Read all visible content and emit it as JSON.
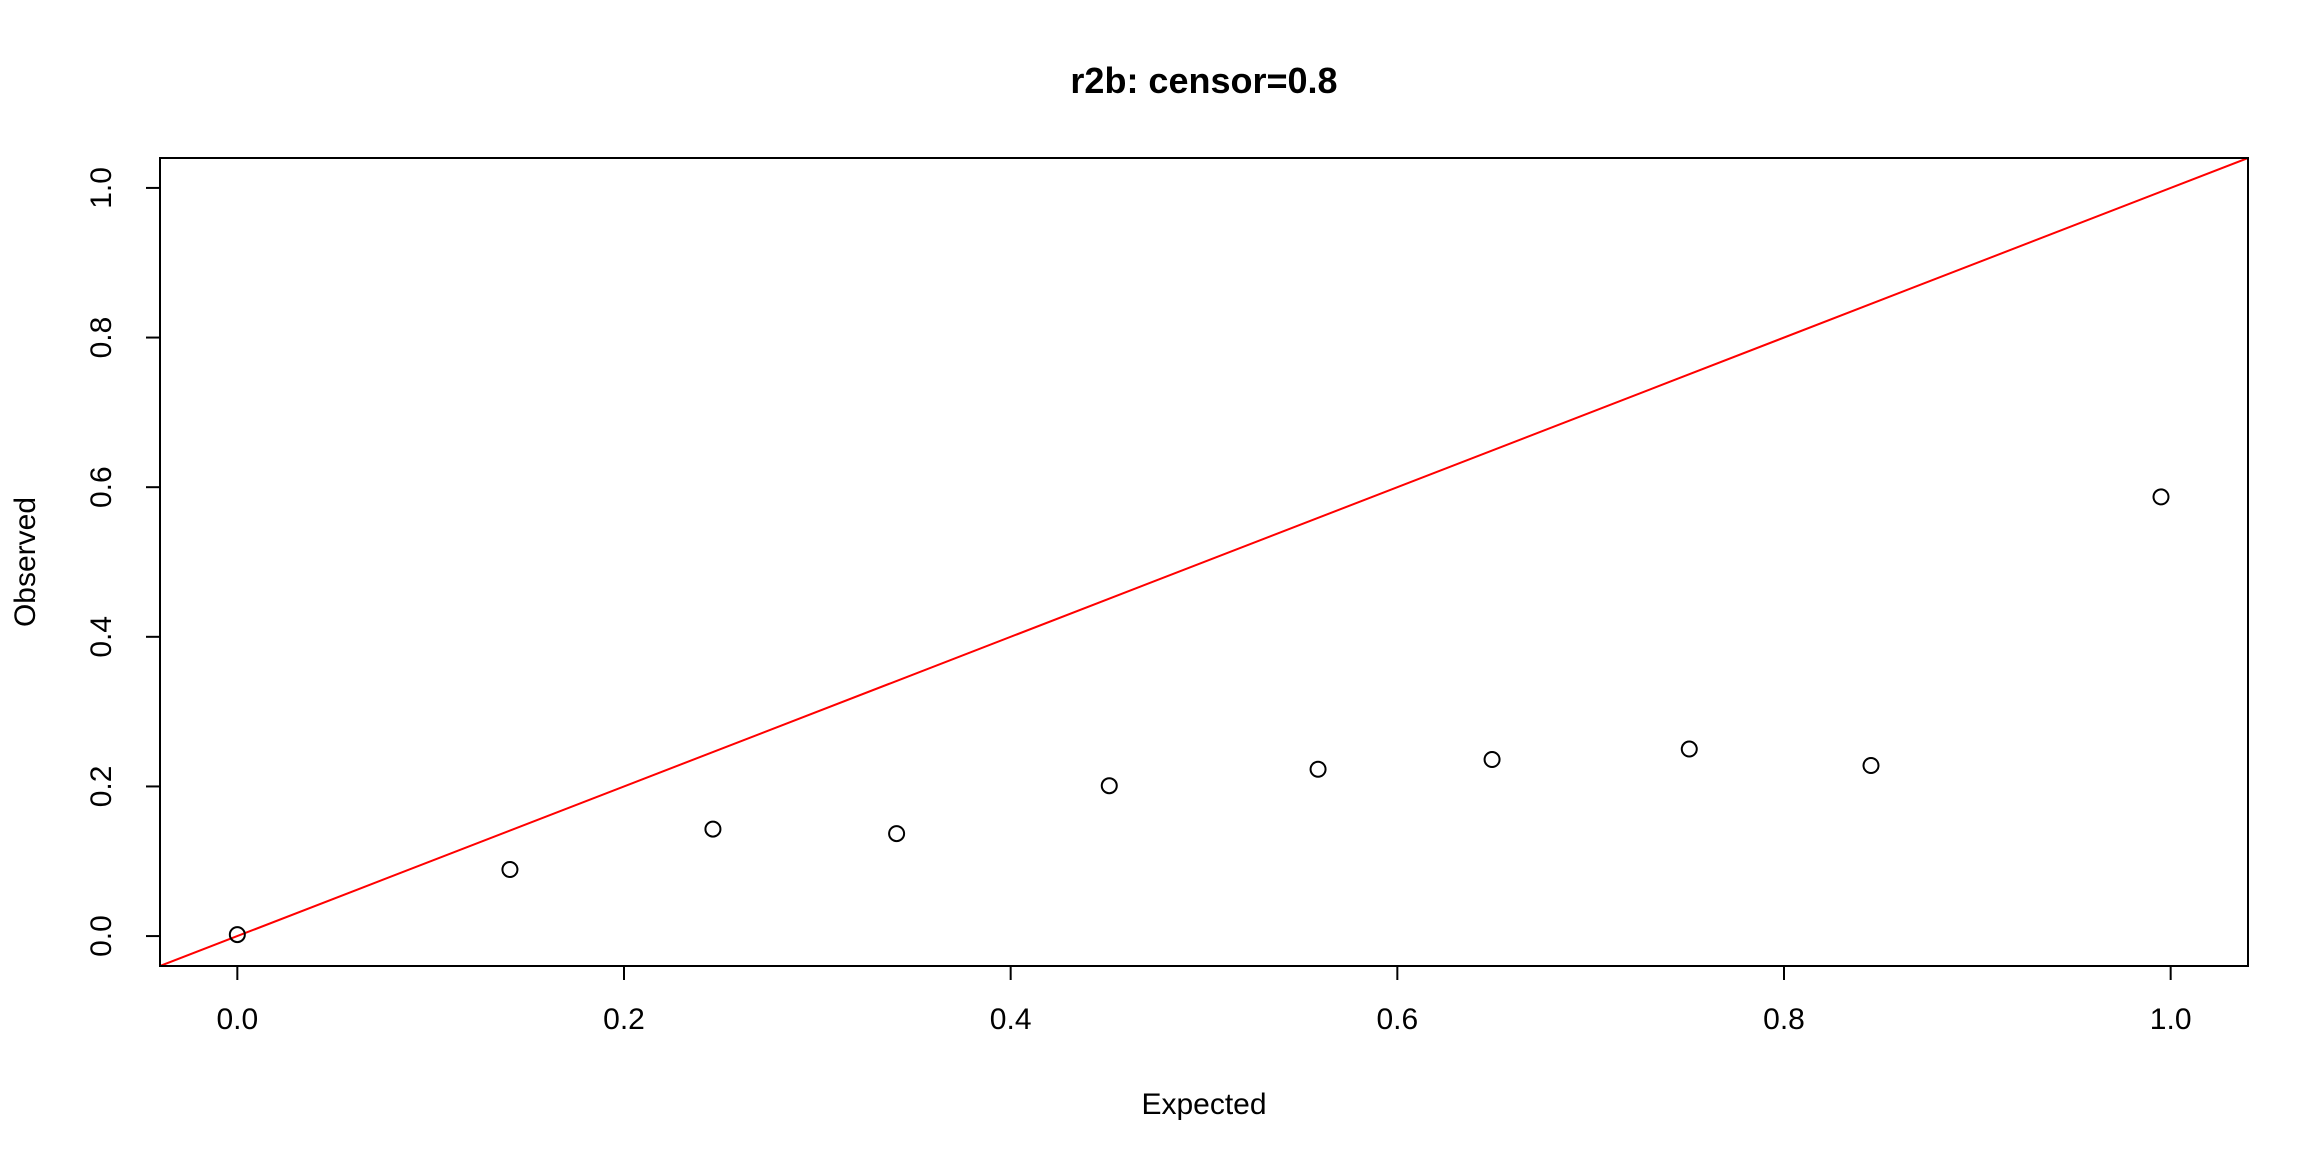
{
  "chart_data": {
    "type": "scatter",
    "title": "r2b: censor=0.8",
    "xlabel": "Expected",
    "ylabel": "Observed",
    "xlim": [
      -0.04,
      1.04
    ],
    "ylim": [
      -0.04,
      1.04
    ],
    "x_ticks": [
      "0.0",
      "0.2",
      "0.4",
      "0.6",
      "0.8",
      "1.0"
    ],
    "y_ticks": [
      "0.0",
      "0.2",
      "0.4",
      "0.6",
      "0.8",
      "1.0"
    ],
    "points": {
      "x": [
        0.0,
        0.141,
        0.246,
        0.341,
        0.451,
        0.559,
        0.649,
        0.751,
        0.845,
        0.995
      ],
      "y": [
        0.002,
        0.089,
        0.143,
        0.137,
        0.201,
        0.223,
        0.236,
        0.25,
        0.228,
        0.587
      ]
    },
    "reference_line": {
      "slope": 1,
      "intercept": 0,
      "color": "#ff0000"
    },
    "grid": false,
    "legend": "none",
    "point_color": "#000000"
  }
}
